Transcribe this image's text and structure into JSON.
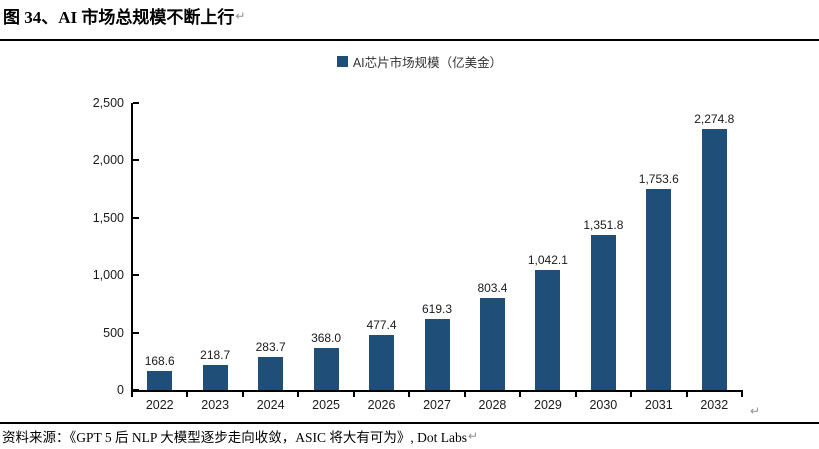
{
  "figure": {
    "title": "图 34、AI 市场总规模不断上行"
  },
  "marks": {
    "return": "↵"
  },
  "source": {
    "text": "资料来源：《GPT 5 后 NLP 大模型逐步走向收敛，ASIC 将大有可为》, Dot Labs"
  },
  "colors": {
    "bar": "#1F4E79",
    "axis": "#000000",
    "text": "#1a1a1a",
    "return_mark": "#909090"
  },
  "chart_data": {
    "type": "bar",
    "title": "AI芯片市场规模（亿美金）",
    "legend": [
      "AI芯片市场规模（亿美金）"
    ],
    "legend_position": "top-center",
    "grid": false,
    "xlabel": "",
    "ylabel": "",
    "categories": [
      "2022",
      "2023",
      "2024",
      "2025",
      "2026",
      "2027",
      "2028",
      "2029",
      "2030",
      "2031",
      "2032"
    ],
    "values": [
      168.6,
      218.7,
      283.7,
      368.0,
      477.4,
      619.3,
      803.4,
      1042.1,
      1351.8,
      1753.6,
      2274.8
    ],
    "value_labels": [
      "168.6",
      "218.7",
      "283.7",
      "368.0",
      "477.4",
      "619.3",
      "803.4",
      "1,042.1",
      "1,351.8",
      "1,753.6",
      "2,274.8"
    ],
    "ylim": [
      0,
      2500
    ],
    "y_ticks": [
      "0",
      "500",
      "1,000",
      "1,500",
      "2,000",
      "2,500"
    ],
    "y_tick_values": [
      0,
      500,
      1000,
      1500,
      2000,
      2500
    ],
    "bar_color": "#1F4E79"
  }
}
